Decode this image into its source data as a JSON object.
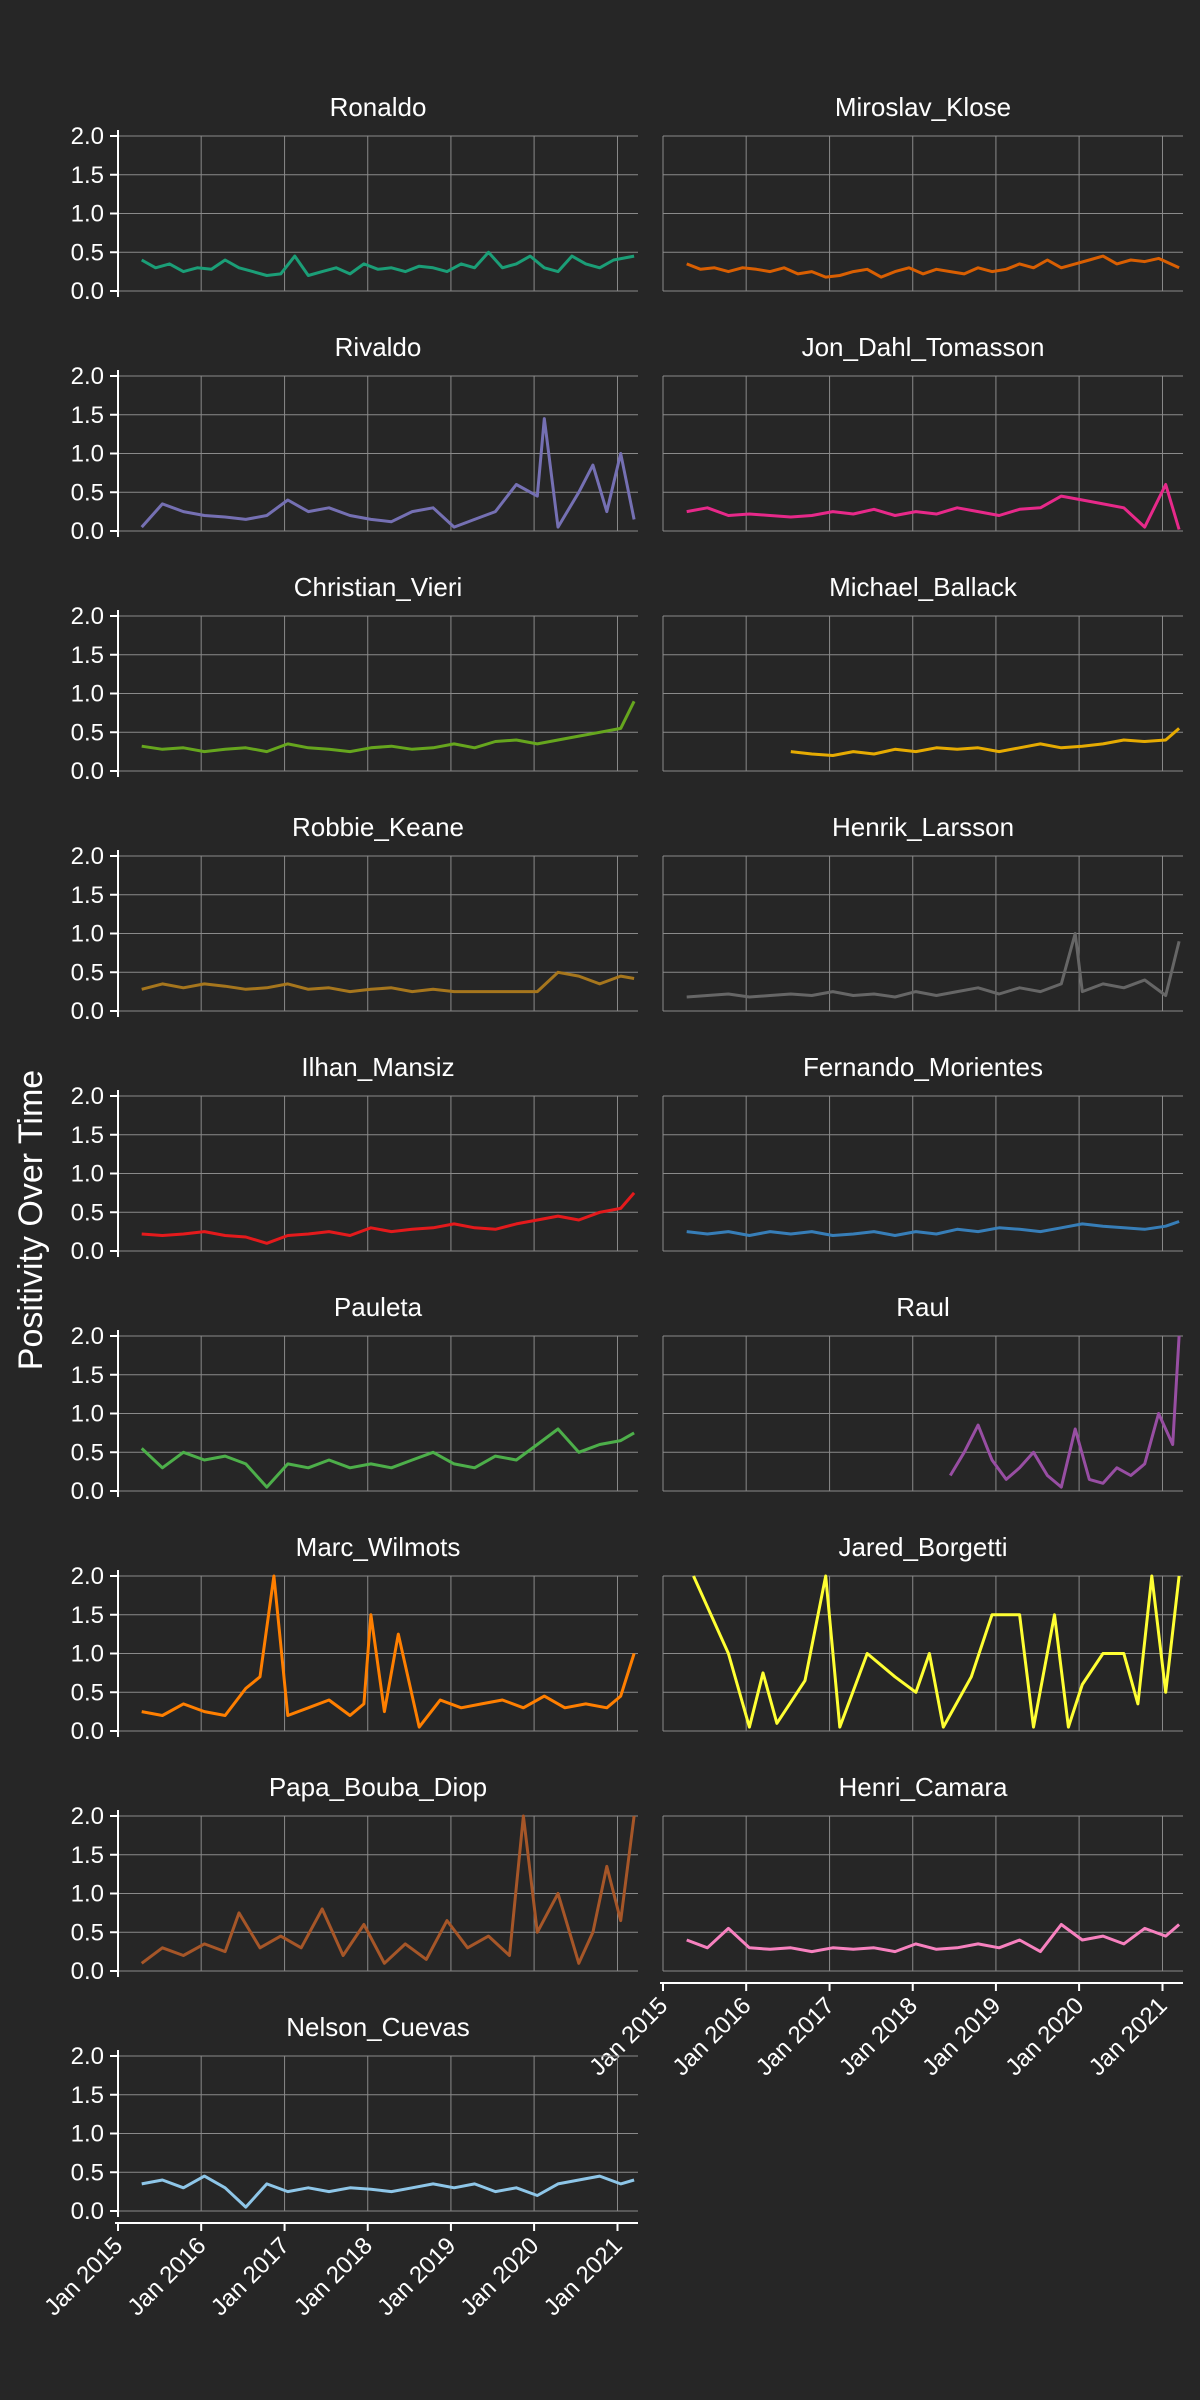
{
  "chart_data": {
    "type": "line",
    "ylabel": "Positivity Over Time",
    "xlabel": "",
    "ylim": [
      0,
      2
    ],
    "yticks": [
      "0.0",
      "0.5",
      "1.0",
      "1.5",
      "2.0"
    ],
    "xlim": [
      "2015-01-01",
      "2021-04-01"
    ],
    "xticks": [
      "Jan 2015",
      "Jan 2016",
      "Jan 2017",
      "Jan 2018",
      "Jan 2019",
      "Jan 2020",
      "Jan 2021"
    ],
    "grid": true,
    "legend": "none",
    "facets": [
      {
        "name": "Ronaldo",
        "color": "#1B9E77",
        "x": [
          "2015-04",
          "2015-06",
          "2015-08",
          "2015-10",
          "2015-12",
          "2016-02",
          "2016-04",
          "2016-06",
          "2016-08",
          "2016-10",
          "2016-12",
          "2017-02",
          "2017-04",
          "2017-06",
          "2017-08",
          "2017-10",
          "2017-12",
          "2018-02",
          "2018-04",
          "2018-06",
          "2018-08",
          "2018-10",
          "2018-12",
          "2019-02",
          "2019-04",
          "2019-06",
          "2019-08",
          "2019-10",
          "2019-12",
          "2020-02",
          "2020-04",
          "2020-06",
          "2020-08",
          "2020-10",
          "2020-12",
          "2021-03"
        ],
        "y": [
          0.4,
          0.3,
          0.35,
          0.25,
          0.3,
          0.28,
          0.4,
          0.3,
          0.25,
          0.2,
          0.22,
          0.45,
          0.2,
          0.25,
          0.3,
          0.22,
          0.35,
          0.28,
          0.3,
          0.25,
          0.32,
          0.3,
          0.25,
          0.35,
          0.3,
          0.5,
          0.3,
          0.35,
          0.45,
          0.3,
          0.25,
          0.45,
          0.35,
          0.3,
          0.4,
          0.45
        ]
      },
      {
        "name": "Miroslav_Klose",
        "color": "#D95F02",
        "x": [
          "2015-04",
          "2015-06",
          "2015-08",
          "2015-10",
          "2015-12",
          "2016-02",
          "2016-04",
          "2016-06",
          "2016-08",
          "2016-10",
          "2016-12",
          "2017-02",
          "2017-04",
          "2017-06",
          "2017-08",
          "2017-10",
          "2017-12",
          "2018-02",
          "2018-04",
          "2018-06",
          "2018-08",
          "2018-10",
          "2018-12",
          "2019-02",
          "2019-04",
          "2019-06",
          "2019-08",
          "2019-10",
          "2019-12",
          "2020-02",
          "2020-04",
          "2020-06",
          "2020-08",
          "2020-10",
          "2020-12",
          "2021-03"
        ],
        "y": [
          0.35,
          0.28,
          0.3,
          0.25,
          0.3,
          0.28,
          0.25,
          0.3,
          0.22,
          0.25,
          0.18,
          0.2,
          0.25,
          0.28,
          0.18,
          0.25,
          0.3,
          0.22,
          0.28,
          0.25,
          0.22,
          0.3,
          0.25,
          0.28,
          0.35,
          0.3,
          0.4,
          0.3,
          0.35,
          0.4,
          0.45,
          0.35,
          0.4,
          0.38,
          0.42,
          0.3
        ]
      },
      {
        "name": "Rivaldo",
        "color": "#7570B3",
        "x": [
          "2015-04",
          "2015-07",
          "2015-10",
          "2016-01",
          "2016-04",
          "2016-07",
          "2016-10",
          "2017-01",
          "2017-04",
          "2017-07",
          "2017-10",
          "2018-01",
          "2018-04",
          "2018-07",
          "2018-10",
          "2019-01",
          "2019-04",
          "2019-07",
          "2019-10",
          "2020-01",
          "2020-02",
          "2020-04",
          "2020-07",
          "2020-09",
          "2020-11",
          "2021-01",
          "2021-03"
        ],
        "y": [
          0.05,
          0.35,
          0.25,
          0.2,
          0.18,
          0.15,
          0.2,
          0.4,
          0.25,
          0.3,
          0.2,
          0.15,
          0.12,
          0.25,
          0.3,
          0.05,
          0.15,
          0.25,
          0.6,
          0.45,
          1.45,
          0.05,
          0.5,
          0.85,
          0.25,
          1.0,
          0.15
        ]
      },
      {
        "name": "Jon_Dahl_Tomasson",
        "color": "#E7298A",
        "x": [
          "2015-04",
          "2015-07",
          "2015-10",
          "2016-01",
          "2016-04",
          "2016-07",
          "2016-10",
          "2017-01",
          "2017-04",
          "2017-07",
          "2017-10",
          "2018-01",
          "2018-04",
          "2018-07",
          "2018-10",
          "2019-01",
          "2019-04",
          "2019-07",
          "2019-10",
          "2020-01",
          "2020-04",
          "2020-07",
          "2020-10",
          "2021-01",
          "2021-03"
        ],
        "y": [
          0.25,
          0.3,
          0.2,
          0.22,
          0.2,
          0.18,
          0.2,
          0.25,
          0.22,
          0.28,
          0.2,
          0.25,
          0.22,
          0.3,
          0.25,
          0.2,
          0.28,
          0.3,
          0.45,
          0.4,
          0.35,
          0.3,
          0.05,
          0.6,
          0.02
        ]
      },
      {
        "name": "Christian_Vieri",
        "color": "#66A61E",
        "x": [
          "2015-04",
          "2015-07",
          "2015-10",
          "2016-01",
          "2016-04",
          "2016-07",
          "2016-10",
          "2017-01",
          "2017-04",
          "2017-07",
          "2017-10",
          "2018-01",
          "2018-04",
          "2018-07",
          "2018-10",
          "2019-01",
          "2019-04",
          "2019-07",
          "2019-10",
          "2020-01",
          "2020-04",
          "2020-07",
          "2020-10",
          "2021-01",
          "2021-03"
        ],
        "y": [
          0.32,
          0.28,
          0.3,
          0.25,
          0.28,
          0.3,
          0.25,
          0.35,
          0.3,
          0.28,
          0.25,
          0.3,
          0.32,
          0.28,
          0.3,
          0.35,
          0.3,
          0.38,
          0.4,
          0.35,
          0.4,
          0.45,
          0.5,
          0.55,
          0.9
        ]
      },
      {
        "name": "Michael_Ballack",
        "color": "#E6AB02",
        "x": [
          "2016-07",
          "2016-10",
          "2017-01",
          "2017-04",
          "2017-07",
          "2017-10",
          "2018-01",
          "2018-04",
          "2018-07",
          "2018-10",
          "2019-01",
          "2019-04",
          "2019-07",
          "2019-10",
          "2020-01",
          "2020-04",
          "2020-07",
          "2020-10",
          "2021-01",
          "2021-03"
        ],
        "y": [
          0.25,
          0.22,
          0.2,
          0.25,
          0.22,
          0.28,
          0.25,
          0.3,
          0.28,
          0.3,
          0.25,
          0.3,
          0.35,
          0.3,
          0.32,
          0.35,
          0.4,
          0.38,
          0.4,
          0.55
        ]
      },
      {
        "name": "Robbie_Keane",
        "color": "#A6761D",
        "x": [
          "2015-04",
          "2015-07",
          "2015-10",
          "2016-01",
          "2016-04",
          "2016-07",
          "2016-10",
          "2017-01",
          "2017-04",
          "2017-07",
          "2017-10",
          "2018-01",
          "2018-04",
          "2018-07",
          "2018-10",
          "2019-01",
          "2019-04",
          "2019-07",
          "2019-10",
          "2020-01",
          "2020-04",
          "2020-07",
          "2020-10",
          "2021-01",
          "2021-03"
        ],
        "y": [
          0.28,
          0.35,
          0.3,
          0.35,
          0.32,
          0.28,
          0.3,
          0.35,
          0.28,
          0.3,
          0.25,
          0.28,
          0.3,
          0.25,
          0.28,
          0.25,
          0.25,
          0.25,
          0.25,
          0.25,
          0.5,
          0.45,
          0.35,
          0.45,
          0.42
        ]
      },
      {
        "name": "Henrik_Larsson",
        "color": "#666666",
        "x": [
          "2015-04",
          "2015-07",
          "2015-10",
          "2016-01",
          "2016-04",
          "2016-07",
          "2016-10",
          "2017-01",
          "2017-04",
          "2017-07",
          "2017-10",
          "2018-01",
          "2018-04",
          "2018-07",
          "2018-10",
          "2019-01",
          "2019-04",
          "2019-07",
          "2019-10",
          "2019-12",
          "2020-01",
          "2020-04",
          "2020-07",
          "2020-10",
          "2021-01",
          "2021-03"
        ],
        "y": [
          0.18,
          0.2,
          0.22,
          0.18,
          0.2,
          0.22,
          0.2,
          0.25,
          0.2,
          0.22,
          0.18,
          0.25,
          0.2,
          0.25,
          0.3,
          0.22,
          0.3,
          0.25,
          0.35,
          1.0,
          0.25,
          0.35,
          0.3,
          0.4,
          0.2,
          0.9
        ]
      },
      {
        "name": "Ilhan_Mansiz",
        "color": "#E41A1C",
        "x": [
          "2015-04",
          "2015-07",
          "2015-10",
          "2016-01",
          "2016-04",
          "2016-07",
          "2016-10",
          "2017-01",
          "2017-04",
          "2017-07",
          "2017-10",
          "2018-01",
          "2018-04",
          "2018-07",
          "2018-10",
          "2019-01",
          "2019-04",
          "2019-07",
          "2019-10",
          "2020-01",
          "2020-04",
          "2020-07",
          "2020-10",
          "2021-01",
          "2021-03"
        ],
        "y": [
          0.22,
          0.2,
          0.22,
          0.25,
          0.2,
          0.18,
          0.1,
          0.2,
          0.22,
          0.25,
          0.2,
          0.3,
          0.25,
          0.28,
          0.3,
          0.35,
          0.3,
          0.28,
          0.35,
          0.4,
          0.45,
          0.4,
          0.5,
          0.55,
          0.75
        ]
      },
      {
        "name": "Fernando_Morientes",
        "color": "#377EB8",
        "x": [
          "2015-04",
          "2015-07",
          "2015-10",
          "2016-01",
          "2016-04",
          "2016-07",
          "2016-10",
          "2017-01",
          "2017-04",
          "2017-07",
          "2017-10",
          "2018-01",
          "2018-04",
          "2018-07",
          "2018-10",
          "2019-01",
          "2019-04",
          "2019-07",
          "2019-10",
          "2020-01",
          "2020-04",
          "2020-07",
          "2020-10",
          "2021-01",
          "2021-03"
        ],
        "y": [
          0.25,
          0.22,
          0.25,
          0.2,
          0.25,
          0.22,
          0.25,
          0.2,
          0.22,
          0.25,
          0.2,
          0.25,
          0.22,
          0.28,
          0.25,
          0.3,
          0.28,
          0.25,
          0.3,
          0.35,
          0.32,
          0.3,
          0.28,
          0.32,
          0.38
        ]
      },
      {
        "name": "Pauleta",
        "color": "#4DAF4A",
        "x": [
          "2015-04",
          "2015-07",
          "2015-10",
          "2016-01",
          "2016-04",
          "2016-07",
          "2016-10",
          "2017-01",
          "2017-04",
          "2017-07",
          "2017-10",
          "2018-01",
          "2018-04",
          "2018-07",
          "2018-10",
          "2019-01",
          "2019-04",
          "2019-07",
          "2019-10",
          "2020-01",
          "2020-04",
          "2020-07",
          "2020-10",
          "2021-01",
          "2021-03"
        ],
        "y": [
          0.55,
          0.3,
          0.5,
          0.4,
          0.45,
          0.35,
          0.05,
          0.35,
          0.3,
          0.4,
          0.3,
          0.35,
          0.3,
          0.4,
          0.5,
          0.35,
          0.3,
          0.45,
          0.4,
          0.6,
          0.8,
          0.5,
          0.6,
          0.65,
          0.75
        ]
      },
      {
        "name": "Raul",
        "color": "#984EA3",
        "x": [
          "2018-06",
          "2018-08",
          "2018-10",
          "2018-12",
          "2019-02",
          "2019-04",
          "2019-06",
          "2019-08",
          "2019-10",
          "2019-12",
          "2020-02",
          "2020-04",
          "2020-06",
          "2020-08",
          "2020-10",
          "2020-12",
          "2021-02",
          "2021-03"
        ],
        "y": [
          0.2,
          0.5,
          0.85,
          0.4,
          0.15,
          0.3,
          0.5,
          0.2,
          0.05,
          0.8,
          0.15,
          0.1,
          0.3,
          0.2,
          0.35,
          1.0,
          0.6,
          2.0
        ]
      },
      {
        "name": "Marc_Wilmots",
        "color": "#FF7F00",
        "x": [
          "2015-04",
          "2015-07",
          "2015-10",
          "2016-01",
          "2016-04",
          "2016-07",
          "2016-09",
          "2016-11",
          "2017-01",
          "2017-04",
          "2017-07",
          "2017-10",
          "2017-12",
          "2018-01",
          "2018-03",
          "2018-05",
          "2018-08",
          "2018-11",
          "2019-02",
          "2019-05",
          "2019-08",
          "2019-11",
          "2020-02",
          "2020-05",
          "2020-08",
          "2020-11",
          "2021-01",
          "2021-03"
        ],
        "y": [
          0.25,
          0.2,
          0.35,
          0.25,
          0.2,
          0.55,
          0.7,
          2.0,
          0.2,
          0.3,
          0.4,
          0.2,
          0.35,
          1.5,
          0.25,
          1.25,
          0.05,
          0.4,
          0.3,
          0.35,
          0.4,
          0.3,
          0.45,
          0.3,
          0.35,
          0.3,
          0.45,
          1.0
        ]
      },
      {
        "name": "Jared_Borgetti",
        "color": "#FFFF33",
        "x": [
          "2015-05",
          "2015-10",
          "2016-01",
          "2016-03",
          "2016-05",
          "2016-09",
          "2016-12",
          "2017-02",
          "2017-06",
          "2017-10",
          "2018-01",
          "2018-03",
          "2018-05",
          "2018-09",
          "2018-12",
          "2019-02",
          "2019-04",
          "2019-06",
          "2019-09",
          "2019-11",
          "2020-01",
          "2020-04",
          "2020-07",
          "2020-09",
          "2020-11",
          "2021-01",
          "2021-03"
        ],
        "y": [
          2.0,
          1.0,
          0.05,
          0.75,
          0.1,
          0.65,
          2.0,
          0.05,
          1.0,
          0.7,
          0.5,
          1.0,
          0.05,
          0.7,
          1.5,
          1.5,
          1.5,
          0.05,
          1.5,
          0.05,
          0.6,
          1.0,
          1.0,
          0.35,
          2.0,
          0.5,
          2.0
        ]
      },
      {
        "name": "Papa_Bouba_Diop",
        "color": "#A65628",
        "x": [
          "2015-04",
          "2015-07",
          "2015-10",
          "2016-01",
          "2016-04",
          "2016-06",
          "2016-09",
          "2016-12",
          "2017-03",
          "2017-06",
          "2017-09",
          "2017-12",
          "2018-03",
          "2018-06",
          "2018-09",
          "2018-12",
          "2019-03",
          "2019-06",
          "2019-09",
          "2019-11",
          "2020-01",
          "2020-04",
          "2020-07",
          "2020-09",
          "2020-11",
          "2021-01",
          "2021-03"
        ],
        "y": [
          0.1,
          0.3,
          0.2,
          0.35,
          0.25,
          0.75,
          0.3,
          0.45,
          0.3,
          0.8,
          0.2,
          0.6,
          0.1,
          0.35,
          0.15,
          0.65,
          0.3,
          0.45,
          0.2,
          2.0,
          0.5,
          1.0,
          0.1,
          0.5,
          1.35,
          0.65,
          2.0
        ]
      },
      {
        "name": "Henri_Camara",
        "color": "#F781BF",
        "x": [
          "2015-04",
          "2015-07",
          "2015-10",
          "2016-01",
          "2016-04",
          "2016-07",
          "2016-10",
          "2017-01",
          "2017-04",
          "2017-07",
          "2017-10",
          "2018-01",
          "2018-04",
          "2018-07",
          "2018-10",
          "2019-01",
          "2019-04",
          "2019-07",
          "2019-10",
          "2020-01",
          "2020-04",
          "2020-07",
          "2020-10",
          "2021-01",
          "2021-03"
        ],
        "y": [
          0.4,
          0.3,
          0.55,
          0.3,
          0.28,
          0.3,
          0.25,
          0.3,
          0.28,
          0.3,
          0.25,
          0.35,
          0.28,
          0.3,
          0.35,
          0.3,
          0.4,
          0.25,
          0.6,
          0.4,
          0.45,
          0.35,
          0.55,
          0.45,
          0.6
        ]
      },
      {
        "name": "Nelson_Cuevas",
        "color": "#8EC6E8",
        "x": [
          "2015-04",
          "2015-07",
          "2015-10",
          "2016-01",
          "2016-04",
          "2016-07",
          "2016-10",
          "2017-01",
          "2017-04",
          "2017-07",
          "2017-10",
          "2018-01",
          "2018-04",
          "2018-07",
          "2018-10",
          "2019-01",
          "2019-04",
          "2019-07",
          "2019-10",
          "2020-01",
          "2020-04",
          "2020-07",
          "2020-10",
          "2021-01",
          "2021-03"
        ],
        "y": [
          0.35,
          0.4,
          0.3,
          0.45,
          0.3,
          0.05,
          0.35,
          0.25,
          0.3,
          0.25,
          0.3,
          0.28,
          0.25,
          0.3,
          0.35,
          0.3,
          0.35,
          0.25,
          0.3,
          0.2,
          0.35,
          0.4,
          0.45,
          0.35,
          0.4
        ]
      }
    ]
  }
}
